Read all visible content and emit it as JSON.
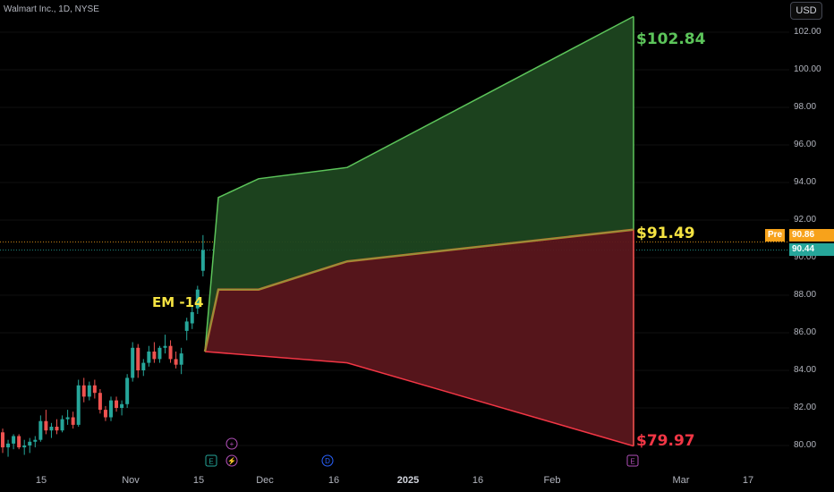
{
  "header": {
    "symbol": "Walmart Inc., 1D, NYSE",
    "currency": "USD"
  },
  "tags": {
    "pre_label": "Pre",
    "pre_price": "90.86",
    "last_price": "90.44",
    "pre_color": "#f7a21b",
    "last_color": "#26a69a"
  },
  "annotations": {
    "em_label": "EM -14",
    "upper": "$102.84",
    "mid": "$91.49",
    "lower": "$79.97",
    "upper_color": "#5cc45a",
    "mid_color": "#f5e342",
    "lower_color": "#f23645"
  },
  "events": {
    "earnings_label": "E",
    "dividend_label": "D"
  },
  "chart_data": {
    "type": "candlestick",
    "title": "Walmart Inc., 1D, NYSE",
    "y_ticks": [
      "80.00",
      "82.00",
      "84.00",
      "86.00",
      "88.00",
      "90.00",
      "92.00",
      "94.00",
      "96.00",
      "98.00",
      "100.00",
      "102.00"
    ],
    "ylim": [
      79,
      103
    ],
    "x_ticks": [
      "15",
      "Nov",
      "15",
      "Dec",
      "16",
      "2025",
      "16",
      "Feb",
      "Mar",
      "17"
    ],
    "expected_move": {
      "upper": [
        [
          "Nov 19",
          85.0
        ],
        [
          "Nov 20",
          93.2
        ],
        [
          "Nov 27",
          94.2
        ],
        [
          "Dec 19",
          94.8
        ],
        [
          "Feb 21",
          102.84
        ]
      ],
      "mid": [
        [
          "Nov 19",
          85.0
        ],
        [
          "Nov 20",
          88.3
        ],
        [
          "Nov 27",
          88.3
        ],
        [
          "Dec 19",
          89.8
        ],
        [
          "Feb 21",
          91.49
        ]
      ],
      "lower": [
        [
          "Nov 19",
          85.0
        ],
        [
          "Dec 19",
          84.4
        ],
        [
          "Feb 21",
          79.97
        ]
      ]
    },
    "candles": [
      {
        "o": 80.7,
        "h": 80.9,
        "l": 79.6,
        "c": 79.9
      },
      {
        "o": 79.9,
        "h": 80.3,
        "l": 79.4,
        "c": 80.1
      },
      {
        "o": 80.1,
        "h": 80.6,
        "l": 79.8,
        "c": 80.5
      },
      {
        "o": 80.5,
        "h": 80.6,
        "l": 79.8,
        "c": 79.9
      },
      {
        "o": 79.9,
        "h": 80.3,
        "l": 79.5,
        "c": 80.0
      },
      {
        "o": 80.0,
        "h": 80.4,
        "l": 79.6,
        "c": 80.2
      },
      {
        "o": 80.2,
        "h": 80.5,
        "l": 79.9,
        "c": 80.3
      },
      {
        "o": 80.3,
        "h": 81.6,
        "l": 80.2,
        "c": 81.3
      },
      {
        "o": 81.3,
        "h": 81.9,
        "l": 80.6,
        "c": 80.8
      },
      {
        "o": 80.8,
        "h": 81.2,
        "l": 80.4,
        "c": 81.0
      },
      {
        "o": 81.0,
        "h": 81.4,
        "l": 80.6,
        "c": 80.8
      },
      {
        "o": 80.8,
        "h": 81.6,
        "l": 80.7,
        "c": 81.4
      },
      {
        "o": 81.4,
        "h": 81.9,
        "l": 81.1,
        "c": 81.5
      },
      {
        "o": 81.5,
        "h": 81.8,
        "l": 80.9,
        "c": 81.1
      },
      {
        "o": 81.1,
        "h": 83.5,
        "l": 81.0,
        "c": 83.2
      },
      {
        "o": 83.2,
        "h": 83.6,
        "l": 82.3,
        "c": 82.6
      },
      {
        "o": 82.6,
        "h": 83.4,
        "l": 82.4,
        "c": 83.2
      },
      {
        "o": 83.2,
        "h": 83.5,
        "l": 82.5,
        "c": 82.8
      },
      {
        "o": 82.8,
        "h": 83.0,
        "l": 81.7,
        "c": 81.9
      },
      {
        "o": 81.9,
        "h": 82.1,
        "l": 81.3,
        "c": 81.5
      },
      {
        "o": 81.5,
        "h": 82.6,
        "l": 81.3,
        "c": 82.4
      },
      {
        "o": 82.4,
        "h": 82.6,
        "l": 81.8,
        "c": 82.0
      },
      {
        "o": 82.0,
        "h": 82.4,
        "l": 81.6,
        "c": 82.2
      },
      {
        "o": 82.2,
        "h": 83.8,
        "l": 82.0,
        "c": 83.6
      },
      {
        "o": 83.6,
        "h": 85.5,
        "l": 83.4,
        "c": 85.2
      },
      {
        "o": 85.2,
        "h": 85.4,
        "l": 83.6,
        "c": 84.0
      },
      {
        "o": 84.0,
        "h": 84.6,
        "l": 83.7,
        "c": 84.4
      },
      {
        "o": 84.4,
        "h": 85.3,
        "l": 84.2,
        "c": 85.0
      },
      {
        "o": 85.0,
        "h": 85.5,
        "l": 84.4,
        "c": 84.6
      },
      {
        "o": 84.6,
        "h": 85.3,
        "l": 84.4,
        "c": 85.2
      },
      {
        "o": 85.2,
        "h": 85.9,
        "l": 84.9,
        "c": 85.3
      },
      {
        "o": 85.3,
        "h": 85.6,
        "l": 84.4,
        "c": 84.6
      },
      {
        "o": 84.6,
        "h": 85.0,
        "l": 84.1,
        "c": 84.3
      },
      {
        "o": 84.3,
        "h": 85.2,
        "l": 83.8,
        "c": 84.9
      },
      {
        "o": 86.1,
        "h": 86.8,
        "l": 85.6,
        "c": 86.6
      },
      {
        "o": 86.5,
        "h": 87.4,
        "l": 86.2,
        "c": 87.1
      },
      {
        "o": 87.3,
        "h": 88.5,
        "l": 87.0,
        "c": 88.3
      },
      {
        "o": 89.3,
        "h": 91.2,
        "l": 89.0,
        "c": 90.4
      }
    ]
  }
}
